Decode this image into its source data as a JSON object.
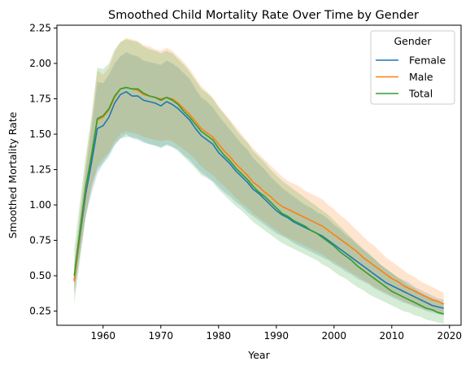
{
  "chart_data": {
    "type": "line",
    "title": "Smoothed Child Mortality Rate Over Time by Gender",
    "xlabel": "Year",
    "ylabel": "Smoothed Mortality Rate",
    "xlim": [
      1952,
      2022
    ],
    "ylim": [
      0.15,
      2.27
    ],
    "xticks": [
      1960,
      1970,
      1980,
      1990,
      2000,
      2010,
      2020
    ],
    "xtick_labels": [
      "1960",
      "1970",
      "1980",
      "1990",
      "2000",
      "2010",
      "2020"
    ],
    "yticks": [
      0.25,
      0.5,
      0.75,
      1.0,
      1.25,
      1.5,
      1.75,
      2.0,
      2.25
    ],
    "ytick_labels": [
      "0.25",
      "0.50",
      "0.75",
      "1.00",
      "1.25",
      "1.50",
      "1.75",
      "2.00",
      "2.25"
    ],
    "grid": false,
    "legend": {
      "title": "Gender",
      "placement": "upper right"
    },
    "x": [
      1955,
      1956,
      1957,
      1958,
      1959,
      1960,
      1961,
      1962,
      1963,
      1964,
      1965,
      1966,
      1967,
      1968,
      1969,
      1970,
      1971,
      1972,
      1973,
      1974,
      1975,
      1976,
      1977,
      1978,
      1979,
      1980,
      1981,
      1982,
      1983,
      1984,
      1985,
      1986,
      1987,
      1988,
      1989,
      1990,
      1991,
      1992,
      1993,
      1994,
      1995,
      1996,
      1997,
      1998,
      1999,
      2000,
      2001,
      2002,
      2003,
      2004,
      2005,
      2006,
      2007,
      2008,
      2009,
      2010,
      2011,
      2012,
      2013,
      2014,
      2015,
      2016,
      2017,
      2018,
      2019
    ],
    "series": [
      {
        "name": "Female",
        "color": "#1f77b4",
        "values": [
          0.47,
          0.78,
          1.08,
          1.3,
          1.54,
          1.56,
          1.62,
          1.72,
          1.78,
          1.8,
          1.77,
          1.77,
          1.74,
          1.73,
          1.72,
          1.7,
          1.73,
          1.71,
          1.68,
          1.64,
          1.6,
          1.54,
          1.49,
          1.46,
          1.43,
          1.37,
          1.33,
          1.29,
          1.24,
          1.2,
          1.16,
          1.11,
          1.08,
          1.04,
          1.0,
          0.96,
          0.93,
          0.91,
          0.88,
          0.86,
          0.84,
          0.82,
          0.8,
          0.78,
          0.75,
          0.72,
          0.69,
          0.66,
          0.63,
          0.6,
          0.57,
          0.54,
          0.51,
          0.48,
          0.45,
          0.43,
          0.41,
          0.39,
          0.37,
          0.35,
          0.33,
          0.31,
          0.29,
          0.28,
          0.27
        ],
        "lower": [
          0.38,
          0.65,
          0.92,
          1.08,
          1.22,
          1.29,
          1.34,
          1.42,
          1.47,
          1.5,
          1.47,
          1.46,
          1.44,
          1.43,
          1.42,
          1.4,
          1.43,
          1.41,
          1.39,
          1.35,
          1.32,
          1.27,
          1.23,
          1.2,
          1.17,
          1.13,
          1.09,
          1.06,
          1.02,
          0.99,
          0.95,
          0.92,
          0.89,
          0.86,
          0.83,
          0.8,
          0.78,
          0.76,
          0.73,
          0.71,
          0.69,
          0.67,
          0.65,
          0.63,
          0.61,
          0.58,
          0.56,
          0.53,
          0.51,
          0.48,
          0.46,
          0.44,
          0.41,
          0.39,
          0.37,
          0.35,
          0.33,
          0.31,
          0.3,
          0.28,
          0.27,
          0.25,
          0.24,
          0.23,
          0.22
        ],
        "upper": [
          0.57,
          0.92,
          1.24,
          1.54,
          1.87,
          1.86,
          1.92,
          2.0,
          2.05,
          2.08,
          2.06,
          2.05,
          2.02,
          2.01,
          2.0,
          1.99,
          2.02,
          2.0,
          1.97,
          1.93,
          1.89,
          1.82,
          1.76,
          1.73,
          1.69,
          1.63,
          1.58,
          1.53,
          1.48,
          1.43,
          1.39,
          1.33,
          1.29,
          1.25,
          1.2,
          1.16,
          1.12,
          1.09,
          1.06,
          1.03,
          1.0,
          0.98,
          0.95,
          0.93,
          0.9,
          0.86,
          0.83,
          0.79,
          0.76,
          0.72,
          0.69,
          0.65,
          0.62,
          0.58,
          0.55,
          0.52,
          0.49,
          0.47,
          0.45,
          0.42,
          0.4,
          0.38,
          0.36,
          0.34,
          0.33
        ]
      },
      {
        "name": "Male",
        "color": "#ff7f0e",
        "values": [
          0.46,
          0.8,
          1.12,
          1.36,
          1.6,
          1.62,
          1.67,
          1.76,
          1.82,
          1.83,
          1.82,
          1.81,
          1.78,
          1.77,
          1.76,
          1.75,
          1.76,
          1.75,
          1.72,
          1.68,
          1.64,
          1.59,
          1.54,
          1.51,
          1.48,
          1.43,
          1.38,
          1.34,
          1.29,
          1.25,
          1.21,
          1.16,
          1.13,
          1.09,
          1.06,
          1.02,
          0.99,
          0.97,
          0.95,
          0.93,
          0.91,
          0.89,
          0.87,
          0.85,
          0.82,
          0.79,
          0.76,
          0.73,
          0.7,
          0.67,
          0.63,
          0.6,
          0.57,
          0.54,
          0.51,
          0.48,
          0.46,
          0.43,
          0.41,
          0.39,
          0.37,
          0.35,
          0.33,
          0.32,
          0.3
        ],
        "lower": [
          0.37,
          0.66,
          0.94,
          1.12,
          1.27,
          1.33,
          1.37,
          1.45,
          1.5,
          1.52,
          1.51,
          1.5,
          1.48,
          1.47,
          1.46,
          1.45,
          1.46,
          1.45,
          1.42,
          1.39,
          1.36,
          1.32,
          1.27,
          1.24,
          1.21,
          1.17,
          1.13,
          1.09,
          1.05,
          1.01,
          0.98,
          0.94,
          0.91,
          0.88,
          0.85,
          0.82,
          0.79,
          0.77,
          0.75,
          0.73,
          0.71,
          0.69,
          0.67,
          0.65,
          0.62,
          0.6,
          0.57,
          0.55,
          0.52,
          0.5,
          0.47,
          0.45,
          0.42,
          0.4,
          0.38,
          0.36,
          0.34,
          0.32,
          0.3,
          0.29,
          0.27,
          0.26,
          0.25,
          0.24,
          0.23
        ],
        "upper": [
          0.57,
          0.95,
          1.3,
          1.6,
          1.95,
          1.92,
          1.97,
          2.08,
          2.15,
          2.18,
          2.17,
          2.16,
          2.13,
          2.12,
          2.1,
          2.09,
          2.11,
          2.09,
          2.05,
          2.01,
          1.96,
          1.9,
          1.84,
          1.8,
          1.76,
          1.7,
          1.65,
          1.6,
          1.55,
          1.5,
          1.45,
          1.4,
          1.36,
          1.32,
          1.28,
          1.24,
          1.2,
          1.17,
          1.15,
          1.13,
          1.1,
          1.08,
          1.06,
          1.04,
          1.0,
          0.97,
          0.93,
          0.9,
          0.86,
          0.82,
          0.78,
          0.74,
          0.71,
          0.67,
          0.63,
          0.6,
          0.57,
          0.54,
          0.51,
          0.49,
          0.46,
          0.44,
          0.42,
          0.4,
          0.38
        ]
      },
      {
        "name": "Total",
        "color": "#2ca02c",
        "values": [
          0.5,
          0.82,
          1.13,
          1.35,
          1.61,
          1.63,
          1.68,
          1.77,
          1.82,
          1.83,
          1.82,
          1.82,
          1.79,
          1.77,
          1.76,
          1.74,
          1.76,
          1.74,
          1.71,
          1.66,
          1.62,
          1.57,
          1.52,
          1.49,
          1.46,
          1.4,
          1.35,
          1.31,
          1.26,
          1.22,
          1.18,
          1.13,
          1.09,
          1.06,
          1.02,
          0.98,
          0.94,
          0.92,
          0.89,
          0.87,
          0.85,
          0.82,
          0.8,
          0.77,
          0.74,
          0.71,
          0.67,
          0.64,
          0.61,
          0.57,
          0.54,
          0.51,
          0.48,
          0.45,
          0.42,
          0.39,
          0.37,
          0.35,
          0.33,
          0.31,
          0.29,
          0.27,
          0.26,
          0.24,
          0.23
        ],
        "lower": [
          0.3,
          0.61,
          0.92,
          1.13,
          1.25,
          1.3,
          1.36,
          1.43,
          1.47,
          1.48,
          1.48,
          1.47,
          1.45,
          1.43,
          1.42,
          1.41,
          1.42,
          1.41,
          1.38,
          1.34,
          1.3,
          1.26,
          1.21,
          1.19,
          1.16,
          1.11,
          1.07,
          1.03,
          0.99,
          0.96,
          0.92,
          0.88,
          0.85,
          0.82,
          0.79,
          0.76,
          0.73,
          0.71,
          0.69,
          0.67,
          0.65,
          0.63,
          0.61,
          0.58,
          0.56,
          0.53,
          0.5,
          0.48,
          0.45,
          0.42,
          0.4,
          0.37,
          0.35,
          0.33,
          0.31,
          0.29,
          0.27,
          0.25,
          0.24,
          0.22,
          0.21,
          0.19,
          0.18,
          0.17,
          0.16
        ],
        "upper": [
          0.69,
          1.03,
          1.35,
          1.63,
          1.97,
          1.96,
          2.0,
          2.1,
          2.15,
          2.17,
          2.16,
          2.15,
          2.12,
          2.1,
          2.09,
          2.07,
          2.09,
          2.07,
          2.03,
          1.99,
          1.94,
          1.88,
          1.82,
          1.79,
          1.75,
          1.69,
          1.64,
          1.59,
          1.53,
          1.48,
          1.44,
          1.38,
          1.34,
          1.3,
          1.25,
          1.21,
          1.17,
          1.14,
          1.11,
          1.08,
          1.05,
          1.02,
          0.99,
          0.96,
          0.93,
          0.89,
          0.85,
          0.81,
          0.77,
          0.73,
          0.69,
          0.66,
          0.62,
          0.58,
          0.55,
          0.52,
          0.49,
          0.46,
          0.43,
          0.41,
          0.38,
          0.36,
          0.34,
          0.32,
          0.3
        ]
      }
    ]
  }
}
